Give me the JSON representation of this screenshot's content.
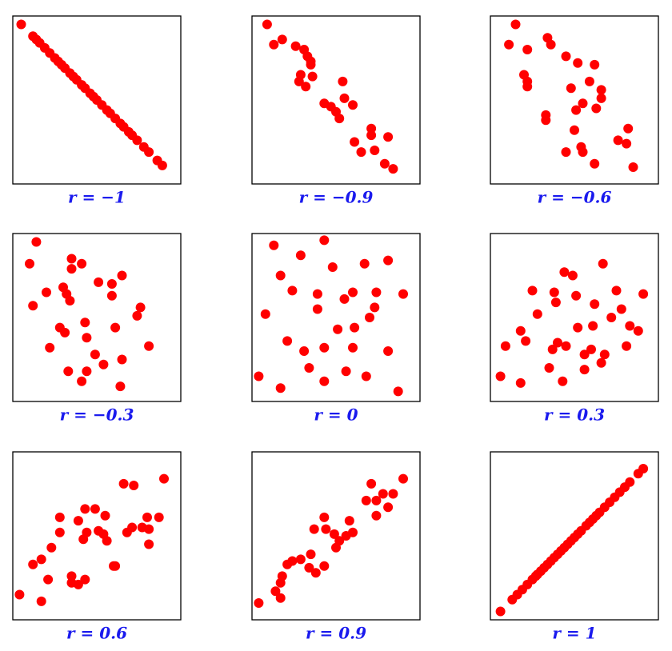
{
  "chart_data": [
    {
      "type": "scatter",
      "title": "r = −1",
      "color": "#ff0000",
      "xlim": [
        0,
        100
      ],
      "ylim": [
        0,
        100
      ],
      "x": [
        5,
        12,
        14,
        16,
        19,
        22,
        25,
        27,
        29,
        31,
        34,
        36,
        38,
        41,
        43,
        46,
        48,
        50,
        53,
        56,
        58,
        61,
        64,
        66,
        69,
        71,
        74,
        78,
        81,
        86,
        89
      ],
      "y": [
        95,
        88,
        86,
        84,
        81,
        78,
        75,
        73,
        71,
        69,
        66,
        64,
        62,
        59,
        57,
        54,
        52,
        50,
        47,
        44,
        42,
        39,
        36,
        34,
        31,
        29,
        26,
        22,
        19,
        14,
        11
      ]
    },
    {
      "type": "scatter",
      "title": "r = −0.9",
      "color": "#ff0000",
      "xlim": [
        0,
        100
      ],
      "ylim": [
        0,
        100
      ],
      "x": [
        9,
        13,
        18,
        26,
        31,
        33,
        35,
        35,
        29,
        36,
        28,
        32,
        54,
        43,
        47,
        55,
        50,
        52,
        60,
        71,
        71,
        81,
        61,
        65,
        73,
        79,
        84
      ],
      "y": [
        95,
        83,
        86,
        82,
        80,
        76,
        73,
        71,
        65,
        64,
        61,
        58,
        61,
        48,
        46,
        51,
        43,
        39,
        47,
        33,
        29,
        28,
        25,
        19,
        20,
        12,
        9
      ]
    },
    {
      "type": "scatter",
      "title": "r = −0.6",
      "color": "#ff0000",
      "xlim": [
        0,
        100
      ],
      "ylim": [
        0,
        100
      ],
      "x": [
        15,
        11,
        22,
        34,
        36,
        45,
        52,
        62,
        20,
        22,
        22,
        59,
        48,
        66,
        66,
        55,
        51,
        63,
        33,
        33,
        50,
        82,
        76,
        81,
        54,
        55,
        45,
        62,
        85
      ],
      "y": [
        95,
        83,
        80,
        87,
        83,
        76,
        72,
        71,
        65,
        61,
        58,
        61,
        57,
        56,
        51,
        48,
        44,
        45,
        41,
        38,
        32,
        33,
        26,
        24,
        22,
        19,
        19,
        12,
        10
      ]
    },
    {
      "type": "scatter",
      "title": "r = −0.3",
      "color": "#ff0000",
      "xlim": [
        0,
        100
      ],
      "ylim": [
        0,
        100
      ],
      "x": [
        14,
        10,
        35,
        41,
        35,
        65,
        51,
        59,
        30,
        20,
        32,
        59,
        34,
        76,
        12,
        74,
        43,
        28,
        31,
        61,
        44,
        81,
        22,
        49,
        54,
        65,
        33,
        44,
        41,
        64
      ],
      "y": [
        95,
        82,
        85,
        82,
        79,
        75,
        71,
        70,
        68,
        65,
        64,
        63,
        60,
        56,
        57,
        51,
        47,
        44,
        41,
        44,
        38,
        33,
        32,
        28,
        22,
        25,
        18,
        18,
        12,
        9
      ]
    },
    {
      "type": "scatter",
      "title": "r = 0",
      "color": "#ff0000",
      "xlim": [
        0,
        100
      ],
      "ylim": [
        0,
        100
      ],
      "x": [
        13,
        43,
        29,
        81,
        48,
        67,
        17,
        24,
        39,
        60,
        74,
        90,
        39,
        55,
        73,
        8,
        70,
        61,
        51,
        21,
        31,
        43,
        60,
        81,
        34,
        56,
        4,
        43,
        68,
        17,
        87
      ],
      "y": [
        93,
        96,
        87,
        84,
        80,
        82,
        75,
        66,
        64,
        65,
        65,
        64,
        55,
        61,
        56,
        52,
        50,
        44,
        43,
        36,
        30,
        32,
        32,
        30,
        20,
        18,
        15,
        12,
        15,
        8,
        6
      ]
    },
    {
      "type": "scatter",
      "title": "r = 0.3",
      "color": "#ff0000",
      "xlim": [
        0,
        100
      ],
      "ylim": [
        0,
        100
      ],
      "x": [
        44,
        49,
        67,
        25,
        38,
        51,
        75,
        91,
        28,
        39,
        62,
        78,
        72,
        83,
        88,
        52,
        61,
        18,
        9,
        21,
        40,
        37,
        45,
        81,
        60,
        56,
        68,
        66,
        56,
        35,
        6,
        18,
        43
      ],
      "y": [
        77,
        75,
        82,
        66,
        65,
        63,
        66,
        64,
        52,
        59,
        58,
        55,
        50,
        45,
        42,
        44,
        45,
        42,
        33,
        36,
        35,
        31,
        33,
        33,
        31,
        28,
        28,
        23,
        19,
        20,
        15,
        11,
        12
      ]
    },
    {
      "type": "scatter",
      "title": "r = 0.6",
      "color": "#ff0000",
      "xlim": [
        0,
        100
      ],
      "ylim": [
        0,
        100
      ],
      "x": [
        90,
        66,
        72,
        28,
        43,
        49,
        55,
        39,
        80,
        71,
        44,
        51,
        87,
        54,
        68,
        77,
        81,
        28,
        56,
        42,
        81,
        23,
        17,
        12,
        60,
        61,
        35,
        43,
        21,
        35,
        39,
        4,
        17
      ],
      "y": [
        84,
        81,
        80,
        61,
        66,
        66,
        62,
        59,
        61,
        55,
        52,
        53,
        61,
        51,
        52,
        55,
        54,
        52,
        47,
        48,
        45,
        43,
        36,
        33,
        32,
        32,
        26,
        24,
        24,
        22,
        21,
        15,
        11
      ]
    },
    {
      "type": "scatter",
      "title": "r = 0.9",
      "color": "#ff0000",
      "xlim": [
        0,
        100
      ],
      "ylim": [
        0,
        100
      ],
      "x": [
        90,
        71,
        78,
        84,
        68,
        74,
        81,
        74,
        43,
        58,
        37,
        44,
        60,
        49,
        56,
        52,
        50,
        35,
        29,
        24,
        21,
        34,
        43,
        38,
        18,
        17,
        14,
        17,
        4
      ],
      "y": [
        84,
        81,
        75,
        75,
        71,
        71,
        67,
        62,
        61,
        59,
        54,
        54,
        52,
        51,
        50,
        47,
        43,
        39,
        36,
        35,
        33,
        31,
        32,
        28,
        26,
        22,
        17,
        13,
        10
      ]
    },
    {
      "type": "scatter",
      "title": "r = 1",
      "color": "#ff0000",
      "xlim": [
        0,
        100
      ],
      "ylim": [
        0,
        100
      ],
      "x": [
        6,
        13,
        16,
        19,
        22,
        25,
        27,
        28,
        30,
        32,
        34,
        36,
        38,
        40,
        42,
        44,
        46,
        48,
        50,
        52,
        54,
        57,
        59,
        61,
        63,
        65,
        68,
        71,
        74,
        77,
        80,
        83,
        88,
        91
      ],
      "y": [
        5,
        12,
        15,
        18,
        21,
        24,
        26,
        27,
        29,
        31,
        33,
        35,
        37,
        39,
        41,
        43,
        45,
        47,
        49,
        51,
        53,
        56,
        58,
        60,
        62,
        64,
        67,
        70,
        73,
        76,
        79,
        82,
        87,
        90
      ]
    }
  ]
}
